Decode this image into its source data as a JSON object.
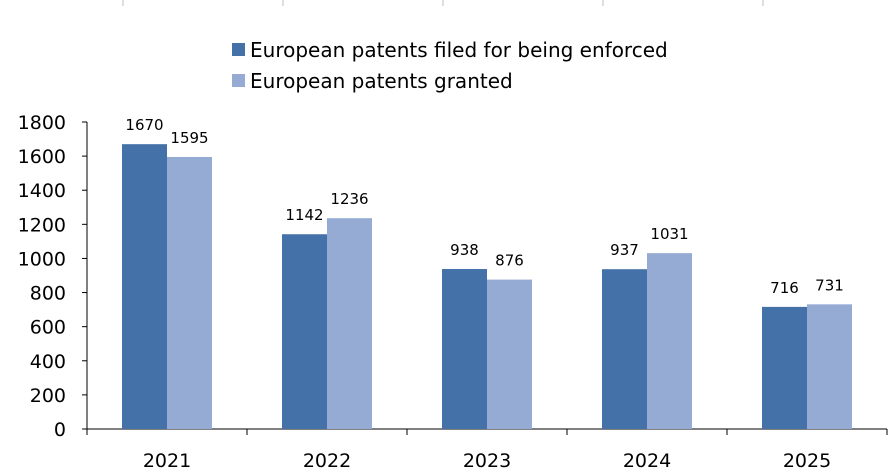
{
  "chart_data": {
    "type": "bar",
    "categories": [
      "2021",
      "2022",
      "2023",
      "2024",
      "2025"
    ],
    "series": [
      {
        "name": "European patents filed for being enforced",
        "values": [
          1670,
          1142,
          938,
          937,
          716
        ],
        "color": "#4472a8"
      },
      {
        "name": "European patents granted",
        "values": [
          1595,
          1236,
          876,
          1031,
          731
        ],
        "color": "#95abd3"
      }
    ],
    "yticks": [
      0,
      200,
      400,
      600,
      800,
      1000,
      1200,
      1400,
      1600,
      1800
    ],
    "ylim": [
      0,
      1800
    ],
    "grid": false,
    "legend_position": "top-center"
  }
}
